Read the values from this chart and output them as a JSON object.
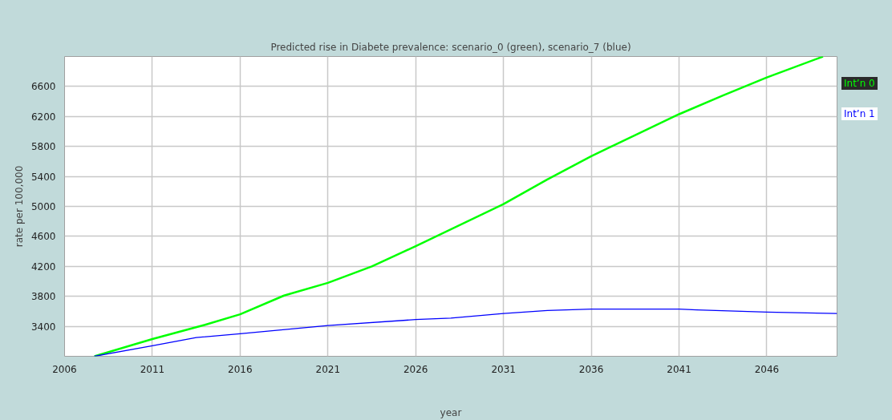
{
  "chart_data": {
    "type": "line",
    "title": "Predicted rise in Diabete prevalence: scenario_0 (green), scenario_7 (blue)",
    "xlabel": "year",
    "ylabel": "rate per 100,000",
    "xlim": [
      2006,
      2050
    ],
    "ylim": [
      3000,
      7000
    ],
    "xticks": [
      2006,
      2011,
      2016,
      2021,
      2026,
      2031,
      2036,
      2041,
      2046
    ],
    "yticks": [
      3400,
      3800,
      4200,
      4600,
      5000,
      5400,
      5800,
      6200,
      6600
    ],
    "grid": true,
    "marker": "none",
    "line_style": "solid",
    "series": [
      {
        "name": "Int’n 0",
        "color": "#00ff00",
        "x": [
          2007.7,
          2011,
          2014,
          2016,
          2018.5,
          2021,
          2023.5,
          2026,
          2031,
          2033.5,
          2036,
          2038.5,
          2041,
          2043.5,
          2046,
          2049.2
        ],
        "values": [
          3000,
          3230,
          3420,
          3560,
          3810,
          3980,
          4200,
          4470,
          5030,
          5360,
          5670,
          5950,
          6230,
          6480,
          6720,
          7000
        ]
      },
      {
        "name": "Int’n 1",
        "color": "#0000ff",
        "x": [
          2007.7,
          2011,
          2013.5,
          2016,
          2021,
          2026,
          2028,
          2031,
          2033.5,
          2036,
          2041,
          2042,
          2046,
          2050
        ],
        "values": [
          3000,
          3140,
          3250,
          3300,
          3410,
          3490,
          3510,
          3570,
          3610,
          3630,
          3630,
          3620,
          3590,
          3570
        ]
      }
    ]
  }
}
